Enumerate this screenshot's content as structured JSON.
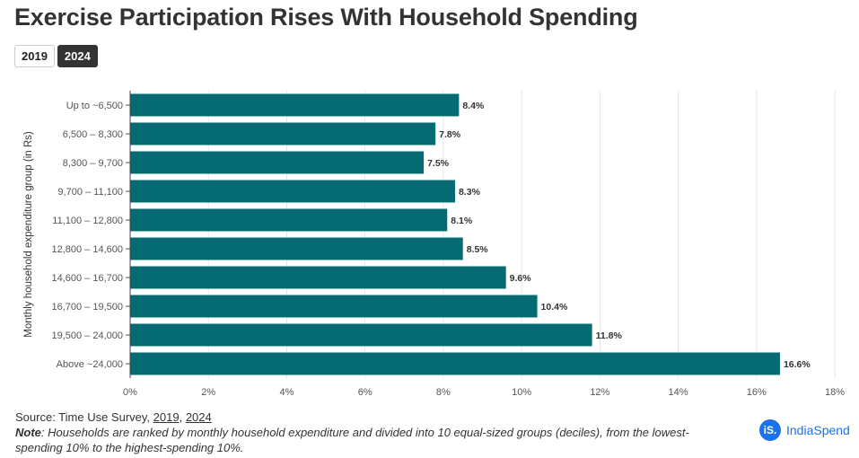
{
  "title": "Exercise Participation Rises With Household Spending",
  "toggle": {
    "options": [
      "2019",
      "2024"
    ],
    "selected": "2024"
  },
  "chart_data": {
    "type": "bar",
    "orientation": "horizontal",
    "title": "Exercise Participation Rises With Household Spending",
    "ylabel": "Monthly household expenditure group (in Rs)",
    "xlabel": "",
    "categories": [
      "Up to ~6,500",
      "6,500 – 8,300",
      "8,300 – 9,700",
      "9,700 – 11,100",
      "11,100 – 12,800",
      "12,800 – 14,600",
      "14,600 – 16,700",
      "16,700 – 19,500",
      "19,500 – 24,000",
      "Above ~24,000"
    ],
    "values": [
      8.4,
      7.8,
      7.5,
      8.3,
      8.1,
      8.5,
      9.6,
      10.4,
      11.8,
      16.6
    ],
    "data_labels": [
      "8.4%",
      "7.8%",
      "7.5%",
      "8.3%",
      "8.1%",
      "8.5%",
      "9.6%",
      "10.4%",
      "11.8%",
      "16.6%"
    ],
    "xlim": [
      0,
      18
    ],
    "xticks": [
      0,
      2,
      4,
      6,
      8,
      10,
      12,
      14,
      16,
      18
    ],
    "xtick_labels": [
      "0%",
      "2%",
      "4%",
      "6%",
      "8%",
      "10%",
      "12%",
      "14%",
      "16%",
      "18%"
    ],
    "grid": true,
    "bar_color": "#046b73"
  },
  "footer": {
    "source_prefix": "Source: Time Use Survey, ",
    "source_link1": "2019",
    "source_sep": ", ",
    "source_link2": "2024",
    "note_label": "Note",
    "note_text": ": Households are ranked by monthly household expenditure and divided into 10 equal-sized groups (deciles), from the lowest-spending 10% to the highest-spending 10%."
  },
  "logo": {
    "mark": "iS.",
    "name": "IndiaSpend"
  }
}
